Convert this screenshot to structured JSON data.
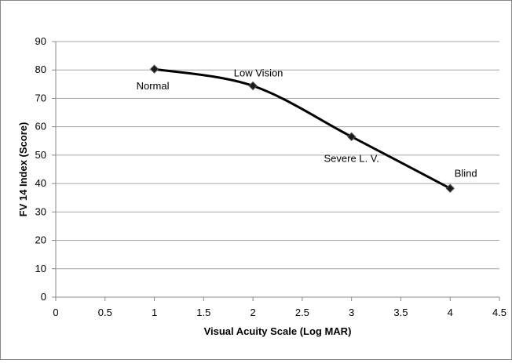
{
  "chart_data": {
    "type": "line",
    "title": "",
    "xlabel": "Visual Acuity Scale (Log MAR)",
    "ylabel": "FV 14 Index (Score)",
    "xlim": [
      0,
      4.5
    ],
    "ylim": [
      0,
      90
    ],
    "x_ticks": [
      "0",
      "0.5",
      "1",
      "1.5",
      "2",
      "2.5",
      "3",
      "3.5",
      "4",
      "4.5"
    ],
    "y_ticks": [
      "0",
      "10",
      "20",
      "30",
      "40",
      "50",
      "60",
      "70",
      "80",
      "90"
    ],
    "grid": "horizontal",
    "legend": "none",
    "smoothed": true,
    "marker": "diamond",
    "line_color": "#000000",
    "grid_color": "#a6a6a6",
    "points": [
      {
        "x": 1,
        "y": 80.3,
        "label": "Normal"
      },
      {
        "x": 2,
        "y": 74.4,
        "label": "Low Vision"
      },
      {
        "x": 3,
        "y": 56.5,
        "label": "Severe L. V."
      },
      {
        "x": 4,
        "y": 38.3,
        "label": "Blind"
      }
    ]
  }
}
